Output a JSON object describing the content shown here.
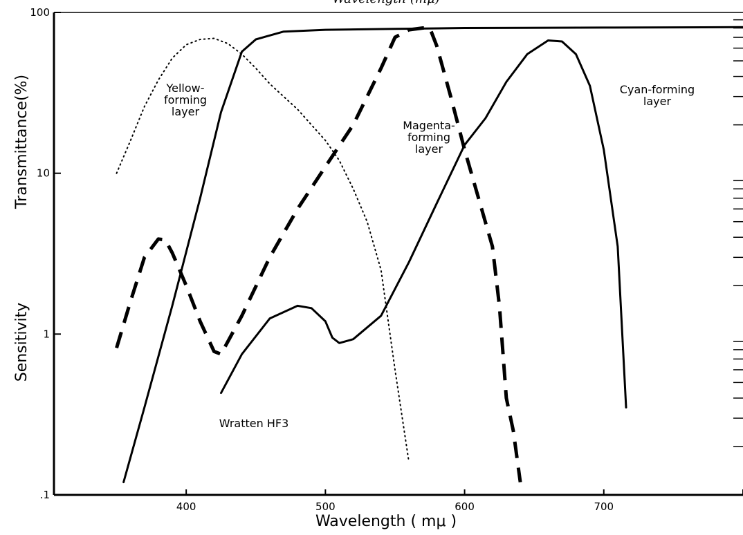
{
  "chart_data": {
    "type": "line",
    "top_label": "Wavelength (mμ)",
    "xlabel": "Wavelength ( mμ )",
    "ylabel_top": "Transmittance(%)",
    "ylabel_bottom": "Sensitivity",
    "xlim": [
      305,
      800
    ],
    "ylim": [
      0.1,
      100
    ],
    "yscale": "log",
    "grid": false,
    "x_ticks": [
      {
        "value": 400,
        "label": "400"
      },
      {
        "value": 500,
        "label": "500"
      },
      {
        "value": 600,
        "label": "600"
      },
      {
        "value": 700,
        "label": "700"
      }
    ],
    "y_ticks": [
      {
        "value": 0.1,
        "label": ".1"
      },
      {
        "value": 1,
        "label": "1"
      },
      {
        "value": 10,
        "label": "10"
      },
      {
        "value": 100,
        "label": "100"
      }
    ],
    "series": [
      {
        "label": "Yellow-\nforming\nlayer",
        "style": "dotted",
        "points": [
          [
            350,
            10
          ],
          [
            360,
            16
          ],
          [
            370,
            26
          ],
          [
            380,
            38
          ],
          [
            390,
            52
          ],
          [
            400,
            63
          ],
          [
            410,
            68
          ],
          [
            420,
            69
          ],
          [
            430,
            64
          ],
          [
            440,
            55
          ],
          [
            450,
            45
          ],
          [
            460,
            36
          ],
          [
            470,
            30
          ],
          [
            480,
            25
          ],
          [
            490,
            20
          ],
          [
            500,
            16
          ],
          [
            510,
            12
          ],
          [
            520,
            8
          ],
          [
            530,
            5
          ],
          [
            540,
            2.5
          ],
          [
            550,
            0.6
          ],
          [
            560,
            0.16
          ]
        ]
      },
      {
        "label": "Magenta-\nforming\nlayer",
        "style": "dashed",
        "points": [
          [
            350,
            0.82
          ],
          [
            360,
            1.6
          ],
          [
            370,
            3
          ],
          [
            380,
            3.9
          ],
          [
            385,
            3.85
          ],
          [
            390,
            3.2
          ],
          [
            400,
            2
          ],
          [
            410,
            1.2
          ],
          [
            420,
            0.78
          ],
          [
            425,
            0.75
          ],
          [
            440,
            1.3
          ],
          [
            460,
            3
          ],
          [
            480,
            6
          ],
          [
            500,
            11
          ],
          [
            520,
            20
          ],
          [
            540,
            45
          ],
          [
            550,
            70
          ],
          [
            560,
            78
          ],
          [
            570,
            80
          ],
          [
            575,
            80
          ],
          [
            580,
            62
          ],
          [
            590,
            30
          ],
          [
            600,
            14
          ],
          [
            610,
            7
          ],
          [
            620,
            3.5
          ],
          [
            625,
            1.5
          ],
          [
            630,
            0.4
          ],
          [
            635,
            0.25
          ],
          [
            640,
            0.12
          ]
        ]
      },
      {
        "label": "Cyan-forming\nlayer",
        "style": "solid",
        "points": [
          [
            425,
            0.43
          ],
          [
            440,
            0.75
          ],
          [
            460,
            1.25
          ],
          [
            480,
            1.5
          ],
          [
            490,
            1.45
          ],
          [
            500,
            1.2
          ],
          [
            505,
            0.95
          ],
          [
            510,
            0.88
          ],
          [
            520,
            0.93
          ],
          [
            540,
            1.3
          ],
          [
            560,
            2.8
          ],
          [
            580,
            6.5
          ],
          [
            600,
            15
          ],
          [
            615,
            22
          ],
          [
            630,
            37
          ],
          [
            645,
            55
          ],
          [
            660,
            67
          ],
          [
            670,
            66
          ],
          [
            680,
            55
          ],
          [
            690,
            35
          ],
          [
            700,
            14
          ],
          [
            710,
            3.5
          ],
          [
            716,
            0.35
          ]
        ]
      },
      {
        "label": "Wratten HF3",
        "style": "solid",
        "points": [
          [
            355,
            0.12
          ],
          [
            370,
            0.35
          ],
          [
            390,
            1.5
          ],
          [
            410,
            7
          ],
          [
            425,
            24
          ],
          [
            440,
            57
          ],
          [
            450,
            68
          ],
          [
            470,
            76
          ],
          [
            500,
            78
          ],
          [
            550,
            79
          ],
          [
            600,
            80
          ],
          [
            700,
            80.5
          ],
          [
            800,
            81
          ]
        ]
      }
    ]
  }
}
